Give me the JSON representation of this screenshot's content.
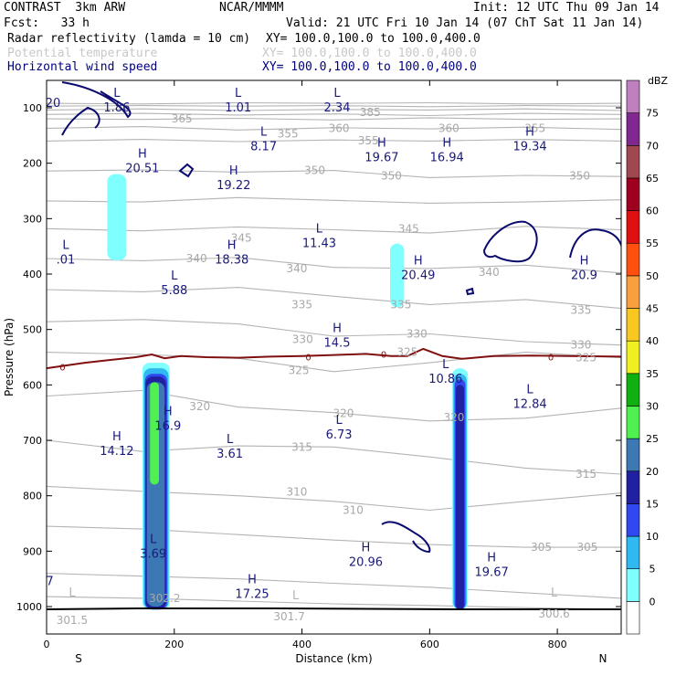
{
  "header": {
    "model": "CONTRAST  3km ARW",
    "source": "NCAR/MMMM",
    "init": "Init: 12 UTC Thu 09 Jan 14",
    "fcst": "Fcst:   33 h",
    "valid": "Valid: 21 UTC Fri 10 Jan 14 (07 ChT Sat 11 Jan 14)",
    "fields": [
      {
        "name": "Radar reflectivity (lamda = 10 cm)",
        "xy": "XY= 100.0,100.0 to 100.0,400.0",
        "color": "#000000"
      },
      {
        "name": "Potential temperature",
        "xy": "XY= 100.0,100.0 to 100.0,400.0",
        "color": "#c8c8c8"
      },
      {
        "name": "Horizontal wind speed",
        "xy": "XY= 100.0,100.0 to 100.0,400.0",
        "color": "#000080"
      }
    ]
  },
  "chart_data": {
    "type": "contour",
    "xlabel": "Distance (km)",
    "ylabel": "Pressure (hPa)",
    "xlim": [
      0,
      900
    ],
    "ylim": [
      1050,
      80
    ],
    "x_ticks": [
      0,
      200,
      400,
      600,
      800
    ],
    "y_ticks": [
      100,
      200,
      300,
      400,
      500,
      600,
      700,
      800,
      900,
      1000
    ],
    "x_end_labels": {
      "left": "S",
      "right": "N"
    },
    "colorbar": {
      "unit": "dBZ",
      "levels": [
        0,
        5,
        10,
        15,
        20,
        25,
        30,
        35,
        40,
        45,
        50,
        55,
        60,
        65,
        70,
        75
      ],
      "colors": [
        "#ffffff",
        "#80ffff",
        "#30b8f0",
        "#3048f0",
        "#2020a0",
        "#3c78b4",
        "#50f050",
        "#10b010",
        "#f0f020",
        "#f8c820",
        "#f8a040",
        "#ff5010",
        "#e01010",
        "#a00020",
        "#a04850",
        "#802890",
        "#c080c0"
      ]
    },
    "theta_labels": [
      {
        "v": "385",
        "x": 507,
        "p": 108
      },
      {
        "v": "365",
        "x": 212,
        "p": 120
      },
      {
        "v": "360",
        "x": 458,
        "p": 137
      },
      {
        "v": "355",
        "x": 378,
        "p": 147
      },
      {
        "v": "355",
        "x": 504,
        "p": 159
      },
      {
        "v": "360",
        "x": 630,
        "p": 137
      },
      {
        "v": "355",
        "x": 765,
        "p": 137
      },
      {
        "v": "350",
        "x": 420,
        "p": 213
      },
      {
        "v": "350",
        "x": 540,
        "p": 223
      },
      {
        "v": "350",
        "x": 835,
        "p": 223
      },
      {
        "v": "345",
        "x": 305,
        "p": 335
      },
      {
        "v": "345",
        "x": 567,
        "p": 318
      },
      {
        "v": "340",
        "x": 235,
        "p": 372
      },
      {
        "v": "340",
        "x": 392,
        "p": 390
      },
      {
        "v": "340",
        "x": 693,
        "p": 397
      },
      {
        "v": "335",
        "x": 400,
        "p": 455
      },
      {
        "v": "335",
        "x": 555,
        "p": 455
      },
      {
        "v": "335",
        "x": 837,
        "p": 465
      },
      {
        "v": "330",
        "x": 401,
        "p": 518
      },
      {
        "v": "330",
        "x": 580,
        "p": 508
      },
      {
        "v": "330",
        "x": 837,
        "p": 528
      },
      {
        "v": "325",
        "x": 395,
        "p": 574
      },
      {
        "v": "325",
        "x": 565,
        "p": 541
      },
      {
        "v": "325",
        "x": 845,
        "p": 551
      },
      {
        "v": "320",
        "x": 240,
        "p": 639
      },
      {
        "v": "320",
        "x": 465,
        "p": 651
      },
      {
        "v": "320",
        "x": 638,
        "p": 659
      },
      {
        "v": "315",
        "x": 400,
        "p": 712
      },
      {
        "v": "315",
        "x": 845,
        "p": 761
      },
      {
        "v": "310",
        "x": 392,
        "p": 793
      },
      {
        "v": "310",
        "x": 480,
        "p": 826
      },
      {
        "v": "305",
        "x": 775,
        "p": 893
      },
      {
        "v": "305",
        "x": 847,
        "p": 893
      },
      {
        "v": "302.2",
        "x": 185,
        "p": 985
      },
      {
        "v": "301.5",
        "x": 40,
        "p": 1025
      },
      {
        "v": "301.7",
        "x": 380,
        "p": 1018
      },
      {
        "v": "300.6",
        "x": 795,
        "p": 1013
      }
    ],
    "theta_extrema": [
      {
        "t": "L",
        "x": 40,
        "p": 975
      },
      {
        "t": "L",
        "x": 390,
        "p": 980
      },
      {
        "t": "L",
        "x": 795,
        "p": 975
      }
    ],
    "wind_extrema": [
      {
        "t": "L",
        "v": "1.86",
        "x": 110,
        "p": 80
      },
      {
        "t": "L",
        "v": "1.01",
        "x": 300,
        "p": 80
      },
      {
        "t": "L",
        "v": "2.34",
        "x": 455,
        "p": 80
      },
      {
        "t": "L",
        "v": "8.17",
        "x": 340,
        "p": 150
      },
      {
        "t": "H",
        "v": "19.67",
        "x": 525,
        "p": 170
      },
      {
        "t": "H",
        "v": "16.94",
        "x": 627,
        "p": 170
      },
      {
        "t": "H",
        "v": "19.34",
        "x": 757,
        "p": 150
      },
      {
        "t": "H",
        "v": "20.51",
        "x": 150,
        "p": 190
      },
      {
        "t": "H",
        "v": "19.22",
        "x": 293,
        "p": 220
      },
      {
        "t": "L",
        "v": "11.43",
        "x": 427,
        "p": 325
      },
      {
        "t": "H",
        "v": "18.38",
        "x": 290,
        "p": 355
      },
      {
        "t": "L",
        "v": ".01",
        "x": 30,
        "p": 355
      },
      {
        "t": "H",
        "v": "20.49",
        "x": 582,
        "p": 383
      },
      {
        "t": "H",
        "v": "20.9",
        "x": 842,
        "p": 383
      },
      {
        "t": "L",
        "v": "5.88",
        "x": 200,
        "p": 410
      },
      {
        "t": "H",
        "v": "14.5",
        "x": 455,
        "p": 505
      },
      {
        "t": "L",
        "v": "10.86",
        "x": 625,
        "p": 570
      },
      {
        "t": "L",
        "v": "12.84",
        "x": 757,
        "p": 615
      },
      {
        "t": "H",
        "v": "16.9",
        "x": 190,
        "p": 655
      },
      {
        "t": "L",
        "v": "6.73",
        "x": 458,
        "p": 670
      },
      {
        "t": "H",
        "v": "14.12",
        "x": 110,
        "p": 700
      },
      {
        "t": "L",
        "v": "3.61",
        "x": 287,
        "p": 705
      },
      {
        "t": "L",
        "v": "3.69",
        "x": 167,
        "p": 885
      },
      {
        "t": "H",
        "v": "20.96",
        "x": 500,
        "p": 900
      },
      {
        "t": "H",
        "v": "19.67",
        "x": 697,
        "p": 918
      },
      {
        "t": "H",
        "v": "17.25",
        "x": 322,
        "p": 958
      }
    ],
    "left_edge_labels": [
      {
        "v": "20",
        "x": 10,
        "p": 92
      },
      {
        "v": "7",
        "x": 5,
        "p": 955
      }
    ],
    "freezing_labels": [
      {
        "v": "0",
        "x": 25,
        "p": 567
      },
      {
        "v": "0",
        "x": 410,
        "p": 549
      },
      {
        "v": "0",
        "x": 528,
        "p": 544
      },
      {
        "v": "0",
        "x": 790,
        "p": 549
      }
    ],
    "reflectivity_cells": [
      {
        "x_center": 170,
        "p_top": 560,
        "p_bottom": 1005,
        "max_dbz": 30
      },
      {
        "x_center": 112,
        "p_top": 225,
        "p_bottom": 375,
        "max_dbz": 5
      },
      {
        "x_center": 550,
        "p_top": 345,
        "p_bottom": 455,
        "max_dbz": 5
      },
      {
        "x_center": 648,
        "p_top": 570,
        "p_bottom": 1005,
        "max_dbz": 20
      }
    ]
  }
}
